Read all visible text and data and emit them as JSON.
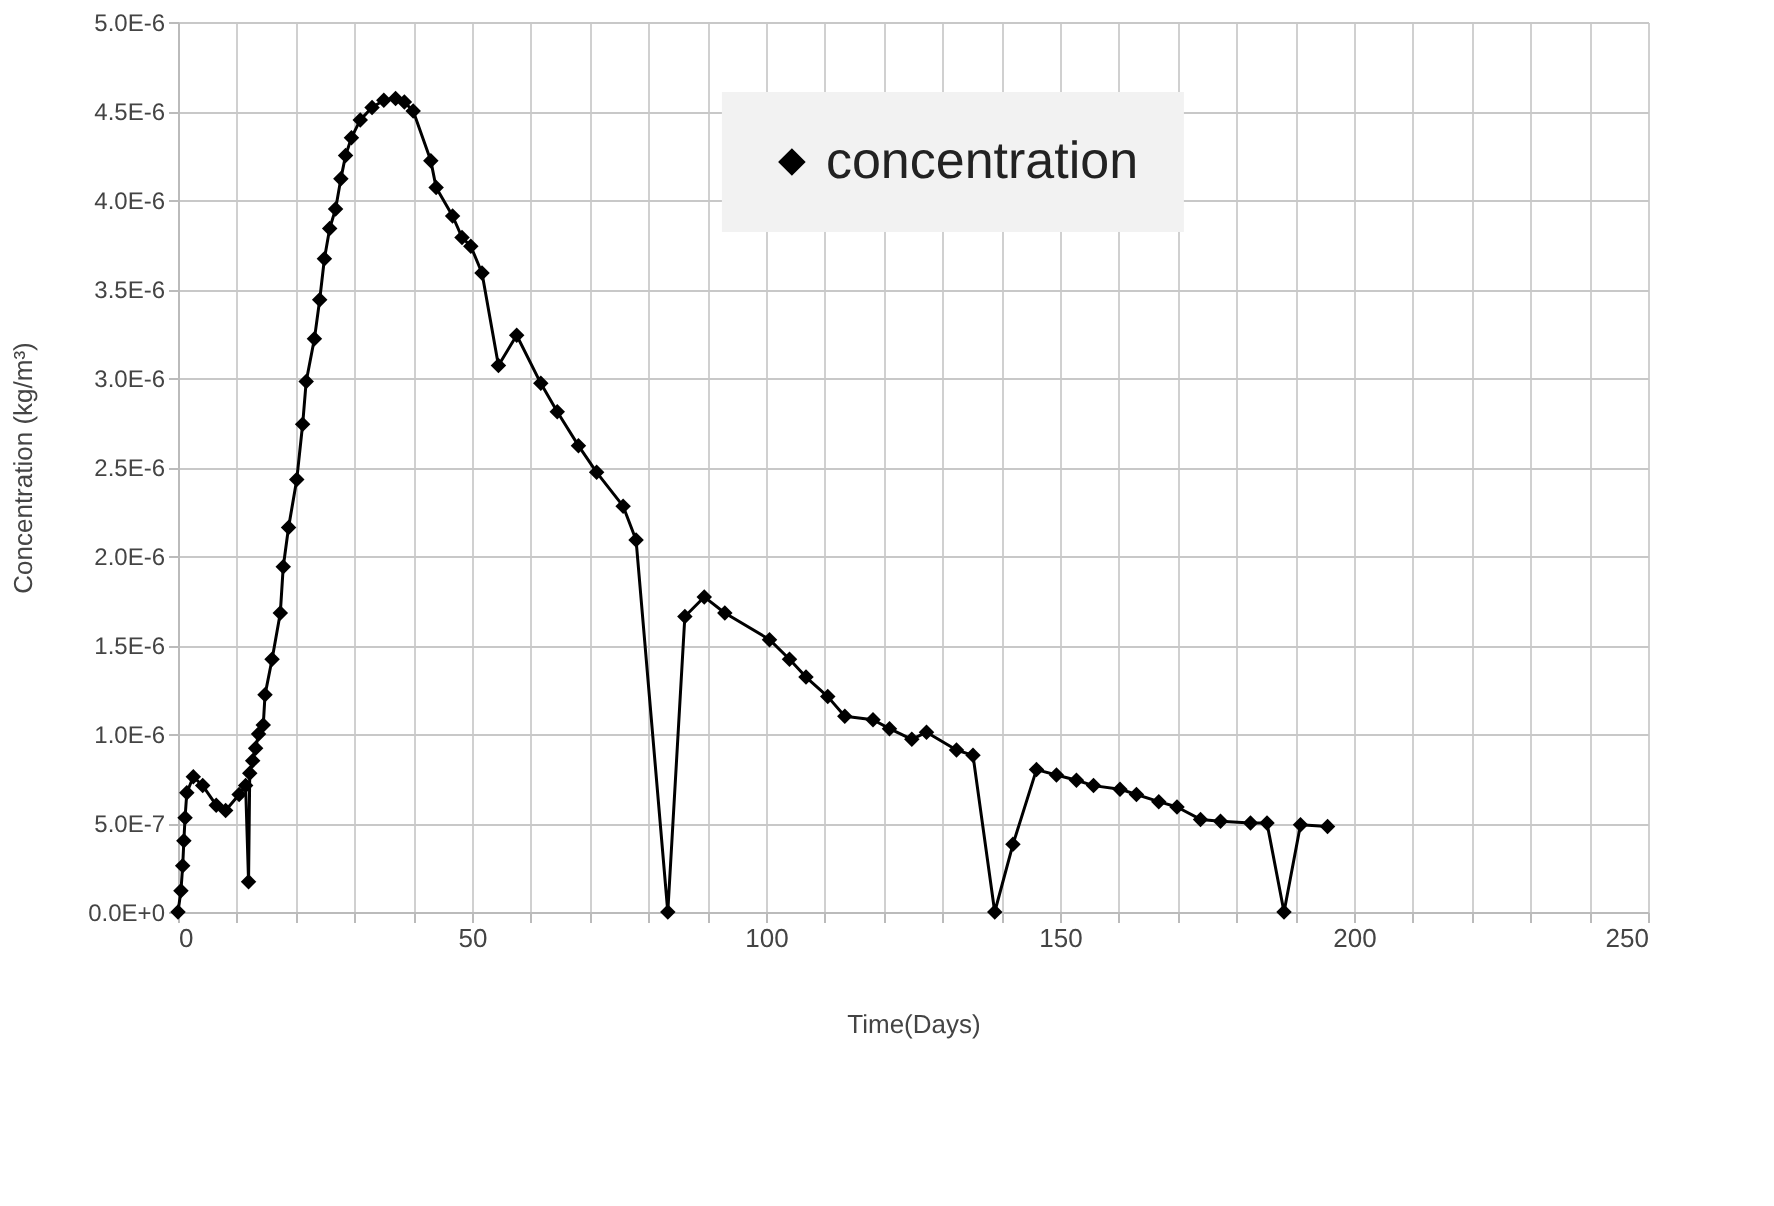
{
  "chart_data": {
    "type": "line",
    "xlabel": "Time(Days)",
    "ylabel": "Concentration        (kg/m³)",
    "x": [
      0,
      0.5,
      0.8,
      1.0,
      1.2,
      1.5,
      2.6,
      4.2,
      6.5,
      8.1,
      10.4,
      11.5,
      12,
      12.2,
      12.7,
      13.2,
      13.7,
      14.5,
      14.8,
      16,
      17.4,
      17.9,
      18.8,
      20.2,
      21.2,
      21.8,
      23.2,
      24.1,
      24.9,
      25.8,
      26.8,
      27.7,
      28.5,
      29.5,
      31,
      33,
      35,
      37,
      38.5,
      40,
      43,
      43.9,
      46.7,
      48.3,
      49.8,
      51.7,
      54.5,
      57.6,
      61.7,
      64.5,
      68.1,
      71.2,
      75.7,
      77.9,
      83.3,
      86.2,
      89.5,
      93,
      100.6,
      104,
      106.8,
      110.5,
      113.4,
      118.2,
      121,
      124.8,
      127.3,
      132.4,
      135.2,
      138.9,
      142,
      146,
      149.4,
      152.8,
      155.7,
      160.2,
      163,
      166.8,
      169.9,
      173.9,
      177.3,
      182.4,
      185.2,
      188.1,
      190.9,
      195.5
    ],
    "series": [
      {
        "name": "concentration",
        "color": "#000000",
        "values": [
          0,
          1.2e-07,
          2.6e-07,
          4e-07,
          5.3e-07,
          6.7e-07,
          7.6e-07,
          7.1e-07,
          6e-07,
          5.7e-07,
          6.6e-07,
          7.1e-07,
          1.7e-07,
          7.8e-07,
          8.5e-07,
          9.2e-07,
          1e-06,
          1.05e-06,
          1.22e-06,
          1.42e-06,
          1.68e-06,
          1.94e-06,
          2.16e-06,
          2.43e-06,
          2.74e-06,
          2.98e-06,
          3.22e-06,
          3.44e-06,
          3.67e-06,
          3.84e-06,
          3.95e-06,
          4.12e-06,
          4.25e-06,
          4.35e-06,
          4.45e-06,
          4.52e-06,
          4.56e-06,
          4.57e-06,
          4.55e-06,
          4.5e-06,
          4.22e-06,
          4.07e-06,
          3.91e-06,
          3.79e-06,
          3.74e-06,
          3.59e-06,
          3.07e-06,
          3.24e-06,
          2.97e-06,
          2.81e-06,
          2.62e-06,
          2.47e-06,
          2.28e-06,
          2.09e-06,
          0,
          1.66e-06,
          1.77e-06,
          1.68e-06,
          1.53e-06,
          1.42e-06,
          1.32e-06,
          1.21e-06,
          1.1e-06,
          1.08e-06,
          1.03e-06,
          9.7e-07,
          1.01e-06,
          9.1e-07,
          8.8e-07,
          0,
          3.8e-07,
          8e-07,
          7.7e-07,
          7.4e-07,
          7.1e-07,
          6.9e-07,
          6.6e-07,
          6.2e-07,
          5.9e-07,
          5.2e-07,
          5.1e-07,
          5e-07,
          5e-07,
          0,
          4.9e-07,
          4.8e-07
        ]
      }
    ],
    "xlim": [
      0,
      250
    ],
    "xticks": [
      0,
      {
        "value": 10,
        "label": null
      },
      {
        "value": 20,
        "label": null
      },
      {
        "value": 30,
        "label": null
      },
      {
        "value": 40,
        "label": null
      },
      50,
      {
        "value": 60,
        "label": null
      },
      {
        "value": 70,
        "label": null
      },
      {
        "value": 80,
        "label": null
      },
      {
        "value": 90,
        "label": null
      },
      100,
      {
        "value": 110,
        "label": null
      },
      {
        "value": 120,
        "label": null
      },
      {
        "value": 130,
        "label": null
      },
      {
        "value": 140,
        "label": null
      },
      150,
      {
        "value": 160,
        "label": null
      },
      {
        "value": 170,
        "label": null
      },
      {
        "value": 180,
        "label": null
      },
      {
        "value": 190,
        "label": null
      },
      200,
      {
        "value": 210,
        "label": null
      },
      {
        "value": 220,
        "label": null
      },
      {
        "value": 230,
        "label": null
      },
      {
        "value": 240,
        "label": null
      },
      250
    ],
    "ylim": [
      0,
      5e-06
    ],
    "yticks": [
      {
        "value": 0,
        "label": "0.0E+0"
      },
      {
        "value": 5e-07,
        "label": "5.0E-7"
      },
      {
        "value": 1e-06,
        "label": "1.0E-6"
      },
      {
        "value": 1.5e-06,
        "label": "1.5E-6"
      },
      {
        "value": 2e-06,
        "label": "2.0E-6"
      },
      {
        "value": 2.5e-06,
        "label": "2.5E-6"
      },
      {
        "value": 3e-06,
        "label": "3.0E-6"
      },
      {
        "value": 3.5e-06,
        "label": "3.5E-6"
      },
      {
        "value": 4e-06,
        "label": "4.0E-6"
      },
      {
        "value": 4.5e-06,
        "label": "4.5E-6"
      },
      {
        "value": 5e-06,
        "label": "5.0E-6"
      }
    ],
    "grid": true,
    "legend": "top right",
    "marker": "diamond",
    "line_style": "solid"
  }
}
